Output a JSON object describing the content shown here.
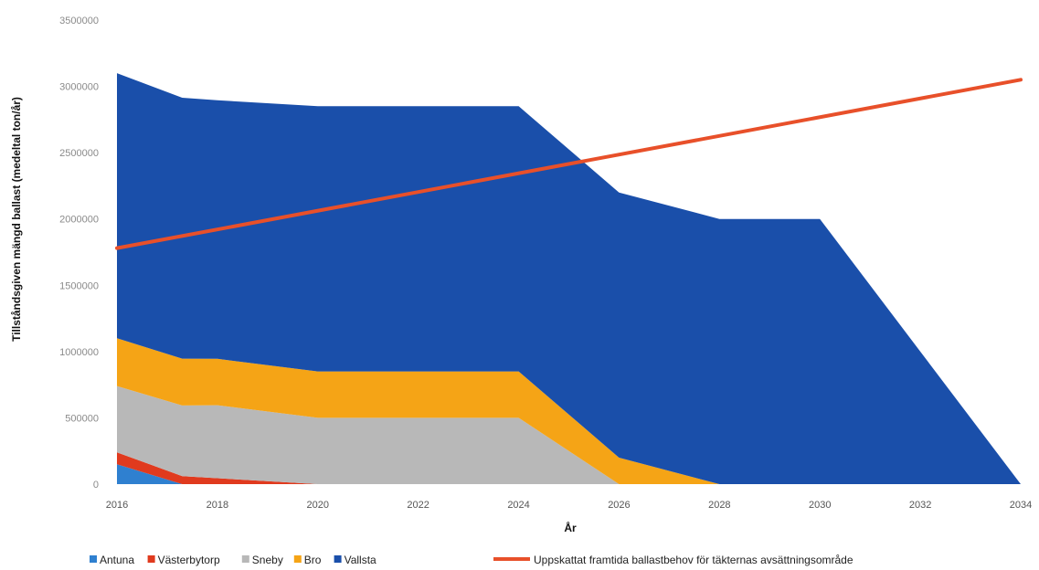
{
  "chart_data": {
    "type": "area",
    "ylabel": "Tillståndsgiven mängd ballast (medeltal ton/år)",
    "xlabel": "År",
    "ylim": [
      0,
      3500000
    ],
    "yticks": [
      0,
      500000,
      1000000,
      1500000,
      2000000,
      2500000,
      3000000,
      3500000
    ],
    "ytick_labels": [
      "0",
      "500000",
      "1000000",
      "1500000",
      "2000000",
      "2500000",
      "3000000",
      "3500000"
    ],
    "xlim": [
      2016,
      2034
    ],
    "xticks": [
      2016,
      2018,
      2020,
      2022,
      2024,
      2026,
      2028,
      2030,
      2032,
      2034
    ],
    "xtick_labels": [
      "2016",
      "2018",
      "2020",
      "2022",
      "2024",
      "2026",
      "2028",
      "2030",
      "2032",
      "2034"
    ],
    "stacked": true,
    "series": [
      {
        "name": "Antuna",
        "color": "#2f80d0",
        "x": [
          2016,
          2017.3
        ],
        "values": [
          150000,
          0
        ]
      },
      {
        "name": "Västerbytorp",
        "color": "#e03a1e",
        "x": [
          2016,
          2020
        ],
        "values": [
          90000,
          0
        ]
      },
      {
        "name": "Sneby",
        "color": "#b8b8b8",
        "x": [
          2016,
          2018,
          2020,
          2024,
          2026
        ],
        "values": [
          500000,
          550000,
          500000,
          500000,
          0
        ]
      },
      {
        "name": "Bro",
        "color": "#f5a416",
        "x": [
          2016,
          2018,
          2020,
          2024,
          2026,
          2028
        ],
        "values": [
          360000,
          350000,
          350000,
          350000,
          200000,
          0
        ]
      },
      {
        "name": "Vallsta",
        "color": "#1a4faa",
        "x": [
          2016,
          2018,
          2020,
          2024,
          2026,
          2028,
          2030,
          2034
        ],
        "values": [
          2000000,
          1950000,
          2000000,
          2000000,
          2000000,
          2000000,
          2000000,
          0
        ]
      }
    ],
    "line": {
      "name": "Uppskattat framtida ballastbehov för täkternas avsättningsområde",
      "color": "#e8502a",
      "x": [
        2016,
        2034
      ],
      "values": [
        1780000,
        3050000
      ]
    },
    "grid": false,
    "legend_position": "bottom"
  }
}
